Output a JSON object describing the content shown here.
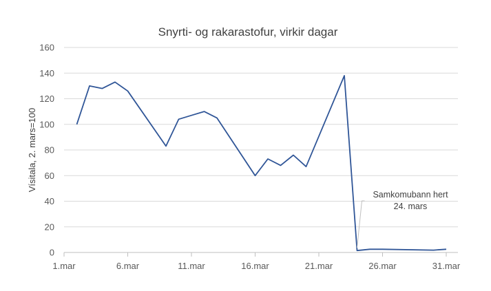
{
  "chart_data": {
    "type": "line",
    "title": "Snyrti- og rakarastofur, virkir dagar",
    "ylabel": "Vísitala, 2. mars=100",
    "xlabel": "",
    "ylim": [
      0,
      160
    ],
    "yticks": [
      0,
      20,
      40,
      60,
      80,
      100,
      120,
      140,
      160
    ],
    "xlim": [
      1,
      31
    ],
    "xticks": [
      {
        "value": 1,
        "label": "1.mar"
      },
      {
        "value": 6,
        "label": "6.mar"
      },
      {
        "value": 11,
        "label": "11.mar"
      },
      {
        "value": 16,
        "label": "16.mar"
      },
      {
        "value": 21,
        "label": "21.mar"
      },
      {
        "value": 26,
        "label": "26.mar"
      },
      {
        "value": 31,
        "label": "31.mar"
      }
    ],
    "grid": true,
    "color": "#2F5597",
    "series": [
      {
        "x": [
          2,
          3,
          4,
          5,
          6,
          9,
          10,
          11,
          12,
          13,
          16,
          17,
          18,
          19,
          20,
          23,
          24,
          25,
          26,
          30,
          31
        ],
        "values": [
          100,
          130,
          128,
          133,
          126,
          83,
          104,
          107,
          110,
          105,
          60,
          73,
          68,
          76,
          67,
          138,
          1.5,
          2.5,
          2.5,
          1.8,
          2.5
        ]
      }
    ],
    "annotations": [
      {
        "lines": [
          "Samkomubann hert",
          "24. mars"
        ],
        "x": 24,
        "y": 1.5
      }
    ]
  }
}
